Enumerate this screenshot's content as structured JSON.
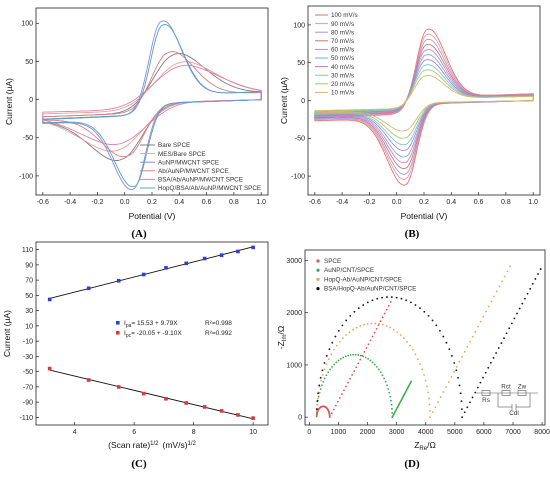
{
  "chart_data": [
    {
      "id": "A",
      "panel_label": "(A)",
      "type": "line",
      "xlabel": "Potential (V)",
      "ylabel": "Current (µA)",
      "xlim": [
        -0.65,
        1.05
      ],
      "ylim": [
        -125,
        120
      ],
      "xticks": [
        -0.6,
        -0.4,
        -0.2,
        0.0,
        0.2,
        0.4,
        0.6,
        0.8,
        1.0
      ],
      "xtick_labels": [
        "-0.6",
        "-0.4",
        "-0.2",
        "0.0",
        "0.2",
        "0.4",
        "0.6",
        "0.8",
        "1.0"
      ],
      "yticks": [
        -100,
        -50,
        0,
        50,
        100
      ],
      "ytick_labels": [
        "-100",
        "-50",
        "0",
        "50",
        "100"
      ],
      "legend_position": "bottom-right",
      "series": [
        {
          "name": "Bare SPCE",
          "color": "#7f7f7f",
          "ipa": 62,
          "epa": 0.33,
          "ipc": -62,
          "epc": 0.0,
          "base": 30,
          "width": 0.2
        },
        {
          "name": "MES/Bare SPCE",
          "color": "#e8a0a0",
          "ipa": 50,
          "epa": 0.36,
          "ipc": -52,
          "epc": -0.02,
          "base": 25,
          "width": 0.24
        },
        {
          "name": "AuNP/MWCNT SPCE",
          "color": "#8c8cd9",
          "ipa": 109,
          "epa": 0.26,
          "ipc": -100,
          "epc": 0.07,
          "base": 35,
          "width": 0.12
        },
        {
          "name": "Ab/AuNP/MWCNT SPCE",
          "color": "#d98080",
          "ipa": 66,
          "epa": 0.3,
          "ipc": -58,
          "epc": 0.04,
          "base": 30,
          "width": 0.16
        },
        {
          "name": "BSA/Ab/AuNP/MWCNT SPCE",
          "color": "#e080b0",
          "ipa": 45,
          "epa": 0.36,
          "ipc": -45,
          "epc": 0.0,
          "base": 22,
          "width": 0.26
        },
        {
          "name": "HopQ/BSA/Ab/AuNP/MWCNT SPCE",
          "color": "#5aa0c8",
          "ipa": 104,
          "epa": 0.27,
          "ipc": -97,
          "epc": 0.08,
          "base": 34,
          "width": 0.12
        }
      ]
    },
    {
      "id": "B",
      "panel_label": "(B)",
      "type": "line",
      "xlabel": "Potential (V)",
      "ylabel": "Current (µA)",
      "xlim": [
        -0.65,
        1.05
      ],
      "ylim": [
        -125,
        125
      ],
      "xticks": [
        -0.6,
        -0.4,
        -0.2,
        0.0,
        0.2,
        0.4,
        0.6,
        0.8,
        1.0
      ],
      "xtick_labels": [
        "-0.6",
        "-0.4",
        "-0.2",
        "0.0",
        "0.2",
        "0.4",
        "0.6",
        "0.8",
        "1.0"
      ],
      "yticks": [
        -100,
        -50,
        0,
        50,
        100
      ],
      "ytick_labels": [
        "-100",
        "-50",
        "0",
        "50",
        "100"
      ],
      "legend_position": "top-left",
      "series": [
        {
          "name": "100 mV/s",
          "color": "#e86a6a",
          "ipa": 100,
          "ipc": -97
        },
        {
          "name": "90 mV/s",
          "color": "#e89a9a",
          "ipa": 93,
          "ipc": -90
        },
        {
          "name": "80 mV/s",
          "color": "#9a9ae0",
          "ipa": 86,
          "ipc": -84
        },
        {
          "name": "70 mV/s",
          "color": "#d27070",
          "ipa": 79,
          "ipc": -77
        },
        {
          "name": "60 mV/s",
          "color": "#e07ab0",
          "ipa": 72,
          "ipc": -70
        },
        {
          "name": "50 mV/s",
          "color": "#6ab0d8",
          "ipa": 65,
          "ipc": -63
        },
        {
          "name": "40 mV/s",
          "color": "#b07ad8",
          "ipa": 58,
          "ipc": -55
        },
        {
          "name": "30 mV/s",
          "color": "#7ac8c8",
          "ipa": 51,
          "ipc": -48
        },
        {
          "name": "20 mV/s",
          "color": "#a0c870",
          "ipa": 44,
          "ipc": -40
        },
        {
          "name": "10 mV/s",
          "color": "#e0b070",
          "ipa": 36,
          "ipc": -31
        }
      ]
    },
    {
      "id": "C",
      "panel_label": "(C)",
      "type": "scatter",
      "xlabel": "(Scan rate)",
      "xlabel_sup": "1/2",
      "xlabel_unit": "(mV/s)",
      "xlabel_unit_sup": "1/2",
      "ylabel": "Current (µA)",
      "xlim": [
        2.7,
        10.5
      ],
      "ylim": [
        -120,
        120
      ],
      "xticks": [
        4,
        6,
        8,
        10
      ],
      "xtick_labels": [
        "4",
        "6",
        "8",
        "10"
      ],
      "yticks": [
        -110,
        -90,
        -70,
        -50,
        -30,
        -10,
        10,
        30,
        50,
        70,
        90,
        110
      ],
      "ytick_labels": [
        "-110",
        "-90",
        "-70",
        "-50",
        "-30",
        "-10",
        "10",
        "30",
        "50",
        "70",
        "90",
        "110"
      ],
      "x": [
        3.16,
        4.47,
        5.48,
        6.32,
        7.07,
        7.75,
        8.37,
        8.94,
        9.49,
        10.0
      ],
      "series": [
        {
          "name": "Ipa",
          "color": "#2b3fd6",
          "values": [
            44.7,
            59.3,
            69.2,
            77.4,
            86.1,
            92.0,
            98.3,
            102.7,
            107.6,
            112.9
          ],
          "label_main": "I",
          "label_sub": "pa",
          "label_eq": "= 15.53 + 9.79X",
          "label_r2": "R²=0.998"
        },
        {
          "name": "Ipc",
          "color": "#d63a3a",
          "values": [
            -46.0,
            -61.0,
            -70.1,
            -78.8,
            -85.6,
            -91.1,
            -96.3,
            -101.5,
            -106.8,
            -111.0
          ],
          "label_main": "I",
          "label_sub": "pc",
          "label_eq": "= -20.05 + -9.10X",
          "label_r2": "R²=0.992"
        }
      ]
    },
    {
      "id": "D",
      "panel_label": "(D)",
      "type": "scatter",
      "xlabel_main": "Z",
      "xlabel_sub": "Re",
      "xlabel_unit": "/Ω",
      "ylabel_main": "-Z",
      "ylabel_sub": "Im",
      "ylabel_unit": "/Ω",
      "xlim": [
        -150,
        8100
      ],
      "ylim": [
        -150,
        3200
      ],
      "xticks": [
        0,
        1000,
        2000,
        3000,
        4000,
        5000,
        6000,
        7000,
        8000
      ],
      "xtick_labels": [
        "0",
        "1000",
        "2000",
        "3000",
        "4000",
        "5000",
        "6000",
        "7000",
        "8000"
      ],
      "yticks": [
        0,
        1000,
        2000,
        3000
      ],
      "ytick_labels": [
        "0",
        "1000",
        "2000",
        "3000"
      ],
      "legend_position": "top-left",
      "series": [
        {
          "name": "SPCE",
          "color": "#e2505a",
          "start": 250,
          "end": 700,
          "tail": 2800
        },
        {
          "name": "AuNP/CNT/SPCE",
          "color": "#3aa84a",
          "start": 250,
          "end": 2850,
          "tail": 3500
        },
        {
          "name": "HopQ-Ab/AuNP/CNT/SPCE",
          "color": "#f0a060",
          "start": 250,
          "end": 4150,
          "tail": 6900
        },
        {
          "name": "BSA/HopQ-Ab/AuNP/CNT/SPCE",
          "color": "#111111",
          "start": 250,
          "end": 5250,
          "tail": 7950
        }
      ],
      "circuit_labels": [
        "Rs",
        "Rct",
        "Cdl",
        "Zw"
      ]
    }
  ]
}
